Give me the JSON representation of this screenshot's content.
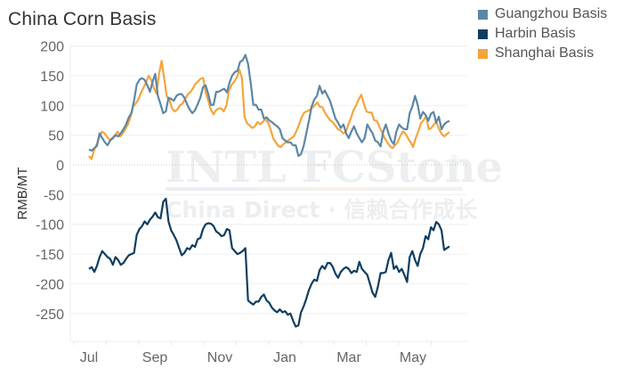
{
  "chart_data": {
    "type": "line",
    "title": "China Corn Basis",
    "xlabel": "",
    "ylabel": "RMB/MT",
    "ylim": [
      -280,
      210
    ],
    "yticks": [
      200,
      150,
      100,
      50,
      0,
      -50,
      -100,
      -150,
      -200,
      -250
    ],
    "xticks": [
      "Jul",
      "Sep",
      "Nov",
      "Jan",
      "Mar",
      "May"
    ],
    "grid": true,
    "legend_position": "top-right",
    "watermark": [
      "INTL FCStone®",
      "China Direct · 信赖合作成长"
    ],
    "x_start_month": "Jul",
    "x_step_days": 4,
    "series": [
      {
        "name": "Guangzhou Basis",
        "color": "#5b87a6",
        "values": [
          26,
          24,
          28,
          32,
          53,
          45,
          38,
          33,
          41,
          45,
          50,
          48,
          53,
          60,
          68,
          80,
          87,
          108,
          135,
          143,
          146,
          143,
          134,
          123,
          140,
          153,
          116,
          102,
          87,
          90,
          113,
          111,
          108,
          116,
          119,
          119,
          113,
          102,
          93,
          87,
          92,
          102,
          113,
          131,
          134,
          119,
          101,
          101,
          123,
          123,
          126,
          128,
          122,
          138,
          150,
          156,
          158,
          173,
          176,
          185,
          170,
          138,
          101,
          101,
          93,
          93,
          78,
          80,
          75,
          72,
          68,
          65,
          60,
          45,
          41,
          38,
          38,
          33,
          33,
          15,
          18,
          32,
          53,
          75,
          98,
          110,
          116,
          133,
          120,
          125,
          116,
          107,
          92,
          78,
          71,
          62,
          68,
          53,
          45,
          56,
          65,
          53,
          45,
          38,
          45,
          68,
          60,
          53,
          41,
          38,
          31,
          56,
          68,
          53,
          41,
          35,
          56,
          68,
          63,
          60,
          60,
          87,
          98,
          116,
          101,
          78,
          89,
          84,
          74,
          86,
          89,
          71,
          81,
          60,
          68,
          72,
          74
        ]
      },
      {
        "name": "Harbin Basis",
        "color": "#0f3e62",
        "values": [
          -175,
          -172,
          -180,
          -170,
          -155,
          -145,
          -150,
          -155,
          -158,
          -168,
          -155,
          -160,
          -168,
          -165,
          -158,
          -152,
          -150,
          -148,
          -118,
          -108,
          -103,
          -95,
          -100,
          -92,
          -87,
          -80,
          -88,
          -90,
          -62,
          -57,
          -95,
          -110,
          -118,
          -127,
          -140,
          -152,
          -148,
          -140,
          -142,
          -135,
          -138,
          -125,
          -123,
          -108,
          -100,
          -98,
          -99,
          -103,
          -112,
          -115,
          -120,
          -118,
          -108,
          -110,
          -140,
          -145,
          -150,
          -148,
          -145,
          -140,
          -228,
          -232,
          -235,
          -230,
          -230,
          -222,
          -218,
          -228,
          -232,
          -240,
          -245,
          -248,
          -243,
          -248,
          -246,
          -252,
          -250,
          -262,
          -272,
          -270,
          -248,
          -238,
          -225,
          -210,
          -200,
          -193,
          -195,
          -177,
          -170,
          -175,
          -165,
          -165,
          -172,
          -183,
          -190,
          -180,
          -175,
          -172,
          -175,
          -182,
          -178,
          -180,
          -163,
          -175,
          -180,
          -185,
          -200,
          -215,
          -222,
          -205,
          -182,
          -182,
          -180,
          -160,
          -148,
          -175,
          -170,
          -180,
          -175,
          -185,
          -197,
          -155,
          -145,
          -160,
          -170,
          -150,
          -140,
          -120,
          -125,
          -105,
          -110,
          -96,
          -100,
          -110,
          -143,
          -140,
          -137
        ]
      },
      {
        "name": "Shanghai Basis",
        "color": "#f5a43c",
        "values": [
          15,
          10,
          25,
          35,
          47,
          56,
          53,
          47,
          42,
          45,
          50,
          56,
          48,
          53,
          60,
          68,
          80,
          98,
          103,
          110,
          121,
          130,
          138,
          150,
          143,
          130,
          120,
          153,
          175,
          145,
          115,
          110,
          95,
          90,
          93,
          100,
          103,
          110,
          118,
          122,
          128,
          136,
          140,
          145,
          146,
          122,
          108,
          93,
          85,
          92,
          95,
          95,
          90,
          100,
          125,
          135,
          140,
          147,
          160,
          146,
          80,
          70,
          66,
          62,
          65,
          72,
          68,
          72,
          77,
          72,
          60,
          45,
          38,
          32,
          30,
          35,
          38,
          42,
          45,
          48,
          57,
          68,
          80,
          88,
          90,
          92,
          96,
          100,
          105,
          98,
          97,
          88,
          81,
          75,
          72,
          66,
          60,
          58,
          53,
          55,
          68,
          79,
          92,
          100,
          110,
          118,
          103,
          90,
          88,
          88,
          75,
          74,
          64,
          55,
          45,
          38,
          32,
          28,
          33,
          38,
          48,
          56,
          53,
          45,
          38,
          30,
          45,
          56,
          70,
          75,
          82,
          60,
          62,
          68,
          72,
          60,
          52,
          48,
          52,
          55
        ]
      }
    ]
  },
  "header": {
    "title": "China Corn Basis"
  },
  "legend": {
    "items": [
      {
        "label": "Guangzhou Basis",
        "color": "#5b87a6"
      },
      {
        "label": "Harbin Basis",
        "color": "#0f3e62"
      },
      {
        "label": "Shanghai Basis",
        "color": "#f5a43c"
      }
    ]
  },
  "axes": {
    "y_title": "RMB/MT",
    "y_ticks": [
      "200",
      "150",
      "100",
      "50",
      "0",
      "-50",
      "-100",
      "-150",
      "-200",
      "-250"
    ],
    "x_ticks": [
      "Jul",
      "Sep",
      "Nov",
      "Jan",
      "Mar",
      "May"
    ]
  },
  "watermark": {
    "line1": "INTL  FCStone",
    "registered": "®",
    "line2": "China Direct · 信赖合作成长"
  }
}
